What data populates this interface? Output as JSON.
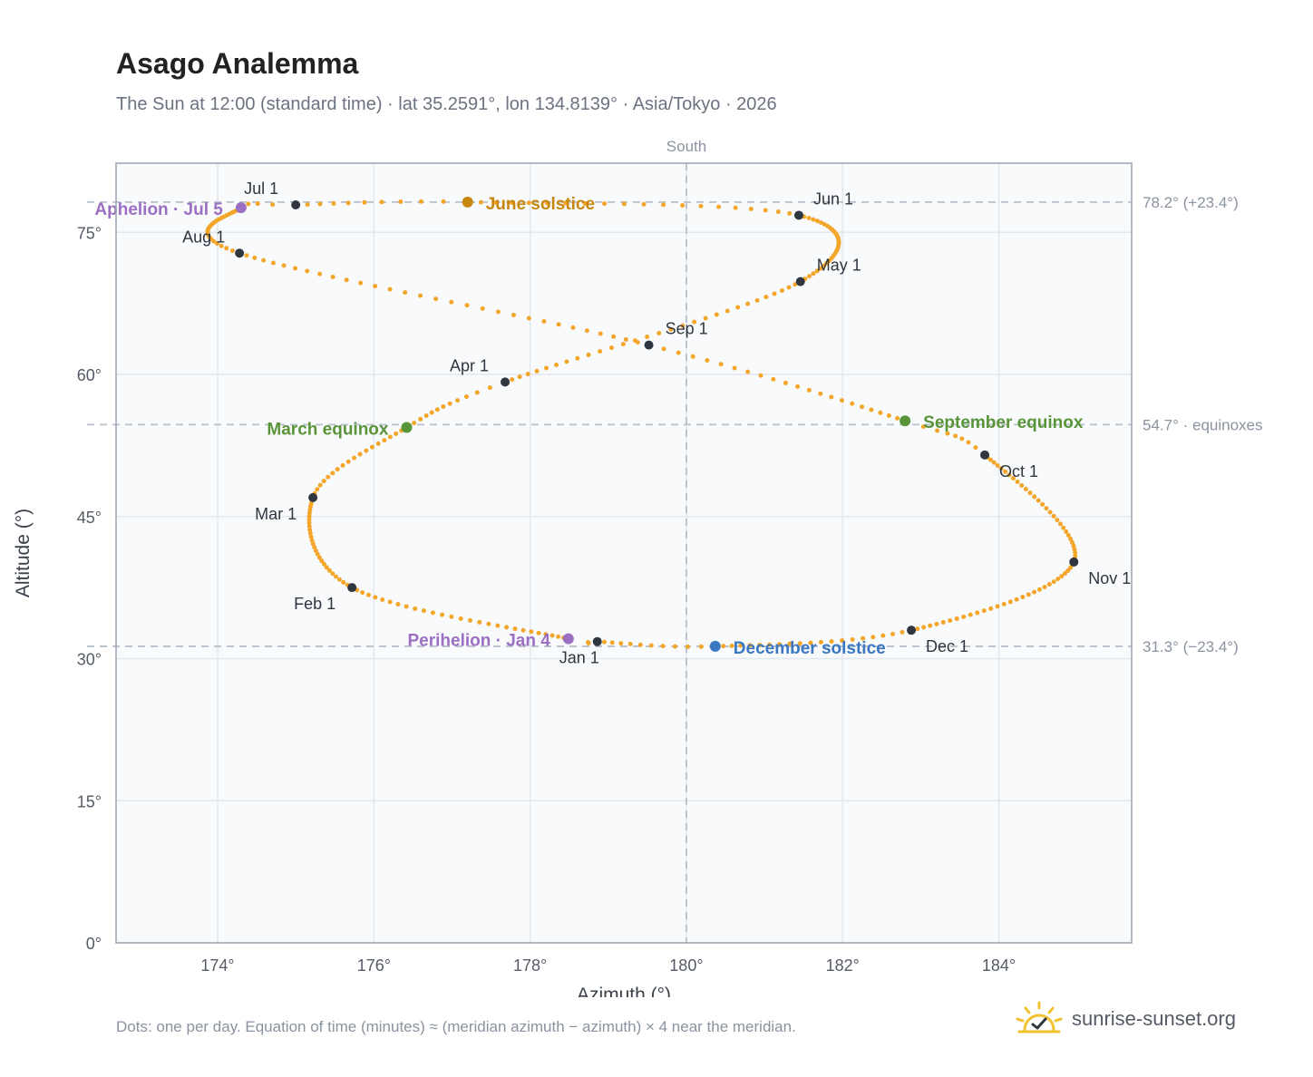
{
  "header": {
    "title": "Asago Analemma",
    "subtitle": "The Sun at 12:00 (standard time) · lat 35.2591°, lon 134.8139° · Asia/Tokyo · 2026"
  },
  "footer": {
    "note": "Dots: one per day. Equation of time (minutes) ≈ (meridian azimuth − azimuth) × 4 near the meridian.",
    "brand": "sunrise-sunset.org",
    "brand_icon": "sun-check-icon"
  },
  "colors": {
    "path": "#f4a62a",
    "month": "#2f3640",
    "solstice_june": "#c8870e",
    "solstice_december": "#3a78c2",
    "equinox": "#5a9438",
    "apsis": "#9b6fc2",
    "plot_bg": "#f8fafc",
    "frame": "#9aa4b2",
    "grid": "#e3e8ee",
    "ref_line": "#b8c0ca"
  },
  "chart_data": {
    "type": "scatter",
    "xlabel": "Azimuth (°)",
    "ylabel": "Altitude (°)",
    "xlim": [
      172.7,
      185.7
    ],
    "ylim": [
      0,
      82.3
    ],
    "xticks": [
      174,
      176,
      178,
      180,
      182,
      184
    ],
    "xtick_labels": [
      "174°",
      "176°",
      "178°",
      "180°",
      "182°",
      "184°"
    ],
    "yticks": [
      0,
      15,
      30,
      45,
      60,
      75
    ],
    "ytick_labels": [
      "0°",
      "15°",
      "30°",
      "45°",
      "60°",
      "75°"
    ],
    "grid": true,
    "meridian": {
      "azimuth": 180,
      "label": "South"
    },
    "reference_lines": [
      {
        "altitude": 78.2,
        "label": "78.2° (+23.4°)"
      },
      {
        "altitude": 54.7,
        "label": "54.7° · equinoxes"
      },
      {
        "altitude": 31.3,
        "label": "31.3° (−23.4°)"
      }
    ],
    "months": [
      {
        "label": "Jan 1",
        "az": 178.86,
        "alt": 31.8
      },
      {
        "label": "Feb 1",
        "az": 175.72,
        "alt": 37.5
      },
      {
        "label": "Mar 1",
        "az": 175.22,
        "alt": 47.0
      },
      {
        "label": "Apr 1",
        "az": 177.68,
        "alt": 59.2
      },
      {
        "label": "May 1",
        "az": 181.46,
        "alt": 69.8
      },
      {
        "label": "Jun 1",
        "az": 181.44,
        "alt": 76.8
      },
      {
        "label": "Jul 1",
        "az": 175.0,
        "alt": 77.9
      },
      {
        "label": "Aug 1",
        "az": 174.28,
        "alt": 72.8
      },
      {
        "label": "Sep 1",
        "az": 179.52,
        "alt": 63.1
      },
      {
        "label": "Oct 1",
        "az": 183.82,
        "alt": 51.5
      },
      {
        "label": "Nov 1",
        "az": 184.96,
        "alt": 40.2
      },
      {
        "label": "Dec 1",
        "az": 182.88,
        "alt": 33.0
      }
    ],
    "events": [
      {
        "label": "June solstice",
        "az": 177.2,
        "alt": 78.2,
        "kind": "solstice_june"
      },
      {
        "label": "December solstice",
        "az": 180.37,
        "alt": 31.3,
        "kind": "solstice_december"
      },
      {
        "label": "March equinox",
        "az": 176.42,
        "alt": 54.4,
        "kind": "equinox"
      },
      {
        "label": "September equinox",
        "az": 182.8,
        "alt": 55.1,
        "kind": "equinox"
      },
      {
        "label": "Aphelion · Jul 5",
        "az": 174.3,
        "alt": 77.6,
        "kind": "apsis"
      },
      {
        "label": "Perihelion · Jan 4",
        "az": 178.49,
        "alt": 32.1,
        "kind": "apsis"
      }
    ]
  }
}
